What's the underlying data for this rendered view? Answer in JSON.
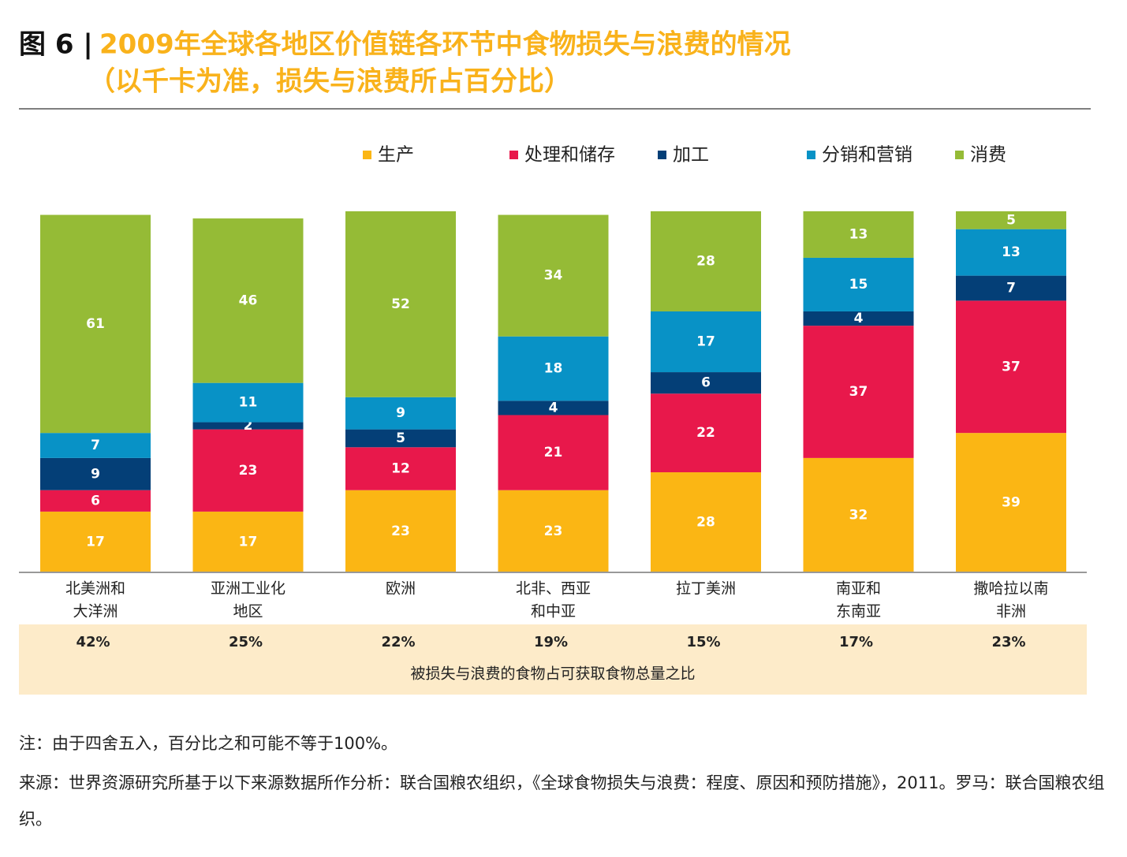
{
  "chart_data": {
    "type": "stacked_bar",
    "figure_label": "图 6 |",
    "title": "2009年全球各地区价值链各环节中食物损失与浪费的情况",
    "subtitle": "（以千卡为准，损失与浪费所占百分比）",
    "categories": [
      [
        "北美洲和",
        "大洋洲"
      ],
      [
        "亚洲工业化",
        "地区"
      ],
      [
        "欧洲"
      ],
      [
        "北非、西亚",
        "和中亚"
      ],
      [
        "拉丁美洲"
      ],
      [
        "南亚和",
        "东南亚"
      ],
      [
        "撒哈拉以南",
        "非洲"
      ]
    ],
    "series": [
      {
        "name": "生产",
        "color": "#fbb614",
        "values": [
          17,
          17,
          23,
          23,
          28,
          32,
          39
        ]
      },
      {
        "name": "处理和储存",
        "color": "#e8184b",
        "values": [
          6,
          23,
          12,
          21,
          22,
          37,
          37
        ]
      },
      {
        "name": "加工",
        "color": "#043f77",
        "values": [
          9,
          2,
          5,
          4,
          6,
          4,
          7
        ]
      },
      {
        "name": "分销和营销",
        "color": "#0892c6",
        "values": [
          7,
          11,
          9,
          18,
          17,
          15,
          13
        ]
      },
      {
        "name": "消费",
        "color": "#95bb36",
        "values": [
          61,
          46,
          52,
          34,
          28,
          13,
          5
        ]
      }
    ],
    "ylim": [
      0,
      101
    ],
    "totals": {
      "label": "被损失与浪费的食物占可获取食物总量之比",
      "values": [
        42,
        25,
        22,
        19,
        15,
        17,
        23
      ],
      "value_labels": [
        "42%",
        "25%",
        "22%",
        "19%",
        "15%",
        "17%",
        "23%"
      ]
    },
    "note": "注：由于四舍五入，百分比之和可能不等于100%。",
    "source": "来源：世界资源研究所基于以下来源数据所作分析：联合国粮农组织，《全球食物损失与浪费：程度、原因和预防措施》，2011。罗马：联合国粮农组织。"
  }
}
